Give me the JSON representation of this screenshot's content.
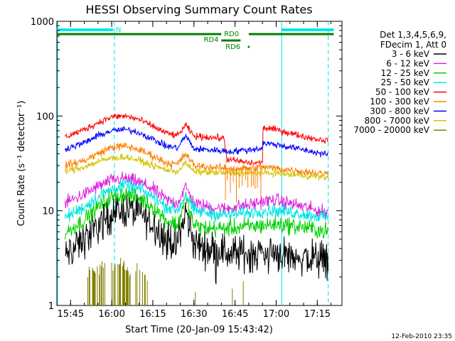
{
  "chart_data": {
    "type": "line",
    "title": "HESSI Observing Summary Count Rates",
    "xlabel": "Start Time (20-Jan-09 15:43:42)",
    "ylabel": "Count Rate (s⁻¹ detector⁻¹)",
    "y_scale": "log",
    "ylim": [
      1,
      1000
    ],
    "xlim": [
      "15:40",
      "17:24"
    ],
    "x_ticks": [
      "15:45",
      "16:00",
      "16:15",
      "16:30",
      "16:45",
      "17:00",
      "17:15"
    ],
    "y_ticks": [
      "1",
      "10",
      "100",
      "1000"
    ],
    "footer_date": "12-Feb-2010 23:35",
    "legend_header": [
      "Det 1,3,4,5,6,9,",
      "FDecim 1, Att 0"
    ],
    "legend_position": "right",
    "series": [
      {
        "name": "3 - 6 keV",
        "color": "#000000",
        "x": [
          "15:43",
          "15:50",
          "15:55",
          "16:00",
          "16:05",
          "16:10",
          "16:15",
          "16:20",
          "16:24",
          "16:27",
          "16:30",
          "16:35",
          "16:41",
          "16:42",
          "16:50",
          "16:55",
          "17:00",
          "17:02",
          "17:05",
          "17:10",
          "17:15",
          "17:19"
        ],
        "values": [
          3.3,
          5,
          7,
          9.5,
          10.5,
          9.5,
          7.5,
          5,
          4.5,
          10,
          4.5,
          4,
          3.9,
          3.5,
          3.6,
          3.6,
          3.7,
          3.5,
          3.4,
          3.2,
          3.1,
          3.2
        ]
      },
      {
        "name": "6 - 12 keV",
        "color": "#e020e0",
        "x": [
          "15:43",
          "15:50",
          "15:55",
          "16:00",
          "16:05",
          "16:10",
          "16:15",
          "16:20",
          "16:24",
          "16:27",
          "16:30",
          "16:35",
          "16:41",
          "16:50",
          "16:55",
          "17:00",
          "17:05",
          "17:10",
          "17:15",
          "17:19"
        ],
        "values": [
          12,
          15,
          18,
          21,
          22,
          20,
          17,
          13,
          12,
          18,
          12,
          11,
          10.5,
          11.5,
          12.5,
          13,
          12,
          11,
          10,
          9.5
        ]
      },
      {
        "name": "12 - 25 keV",
        "color": "#00d000",
        "x": [
          "15:43",
          "15:50",
          "15:55",
          "16:00",
          "16:05",
          "16:10",
          "16:15",
          "16:20",
          "16:24",
          "16:27",
          "16:30",
          "16:35",
          "16:41",
          "16:50",
          "16:55",
          "17:00",
          "17:05",
          "17:10",
          "17:15",
          "17:19"
        ],
        "values": [
          5.8,
          8,
          11,
          14,
          15,
          13.5,
          11,
          8,
          7,
          14,
          7,
          6.5,
          6.5,
          6.8,
          7,
          7.2,
          7,
          6.7,
          6.3,
          6
        ]
      },
      {
        "name": "25 - 50 keV",
        "color": "#00e5e5",
        "x": [
          "15:43",
          "15:50",
          "15:55",
          "16:00",
          "16:05",
          "16:10",
          "16:15",
          "16:20",
          "16:24",
          "16:27",
          "16:30",
          "16:35",
          "16:41",
          "16:50",
          "16:55",
          "17:00",
          "17:05",
          "17:10",
          "17:15",
          "17:19"
        ],
        "values": [
          8.5,
          11,
          14,
          17,
          18.5,
          17,
          14,
          11,
          10,
          15,
          10,
          9.5,
          9,
          9.5,
          10,
          10,
          9.7,
          9.2,
          8.8,
          8.5
        ]
      },
      {
        "name": "50 - 100 keV",
        "color": "#ff0000",
        "x": [
          "15:43",
          "15:50",
          "15:55",
          "16:00",
          "16:05",
          "16:10",
          "16:15",
          "16:20",
          "16:24",
          "16:27",
          "16:30",
          "16:35",
          "16:41",
          "16:42",
          "16:50",
          "16:55",
          "16:55",
          "17:00",
          "17:05",
          "17:10",
          "17:15",
          "17:19"
        ],
        "values": [
          60,
          72,
          85,
          98,
          100,
          92,
          78,
          66,
          62,
          80,
          61,
          60,
          58,
          35,
          32,
          32,
          75,
          72,
          66,
          61,
          57,
          55
        ]
      },
      {
        "name": "100 - 300 keV",
        "color": "#ff7f00",
        "x": [
          "15:43",
          "15:50",
          "15:55",
          "16:00",
          "16:05",
          "16:10",
          "16:15",
          "16:20",
          "16:24",
          "16:27",
          "16:30",
          "16:35",
          "16:41",
          "16:50",
          "16:55",
          "17:00",
          "17:05",
          "17:10",
          "17:15",
          "17:19"
        ],
        "values": [
          30,
          34,
          40,
          47,
          48,
          44,
          38,
          32,
          31,
          40,
          30,
          29,
          28,
          28,
          29,
          28,
          27,
          26,
          25,
          24.5
        ]
      },
      {
        "name": "300 - 800 keV",
        "color": "#0000ff",
        "x": [
          "15:43",
          "15:50",
          "15:55",
          "16:00",
          "16:05",
          "16:10",
          "16:15",
          "16:20",
          "16:24",
          "16:27",
          "16:30",
          "16:35",
          "16:41",
          "16:42",
          "16:50",
          "16:55",
          "16:55",
          "17:00",
          "17:05",
          "17:10",
          "17:15",
          "17:19"
        ],
        "values": [
          45,
          52,
          62,
          70,
          72,
          67,
          57,
          48,
          46,
          62,
          45,
          44,
          43,
          42,
          44,
          46,
          52,
          50,
          47,
          44,
          41,
          39
        ]
      },
      {
        "name": "800 - 7000 keV",
        "color": "#d4c400",
        "x": [
          "15:43",
          "15:50",
          "15:55",
          "16:00",
          "16:05",
          "16:10",
          "16:15",
          "16:20",
          "16:24",
          "16:27",
          "16:30",
          "16:35",
          "16:41",
          "16:50",
          "16:55",
          "17:00",
          "17:05",
          "17:10",
          "17:15",
          "17:19"
        ],
        "values": [
          26,
          29,
          33,
          36,
          37,
          34,
          30,
          27,
          26,
          32,
          26,
          25.5,
          25,
          25,
          25,
          25,
          24,
          23.5,
          23,
          22.5
        ]
      },
      {
        "name": "7000 - 20000 keV",
        "color": "#808000",
        "x": [
          "15:51",
          "15:53",
          "15:55",
          "15:57",
          "15:59",
          "16:01",
          "16:03",
          "16:05",
          "16:07",
          "16:09",
          "16:11",
          "16:13"
        ],
        "values": [
          2,
          2.4,
          2.2,
          2.6,
          2.3,
          2.6,
          2.8,
          2.4,
          2.2,
          2.5,
          2,
          1.8
        ]
      }
    ],
    "annotations": [
      {
        "label": "N",
        "color": "#00e5e5"
      },
      {
        "label": "RD0",
        "color": "#007f00"
      },
      {
        "label": "RD4",
        "color": "#007f00"
      },
      {
        "label": "RD6",
        "color": "#007f00"
      }
    ]
  }
}
